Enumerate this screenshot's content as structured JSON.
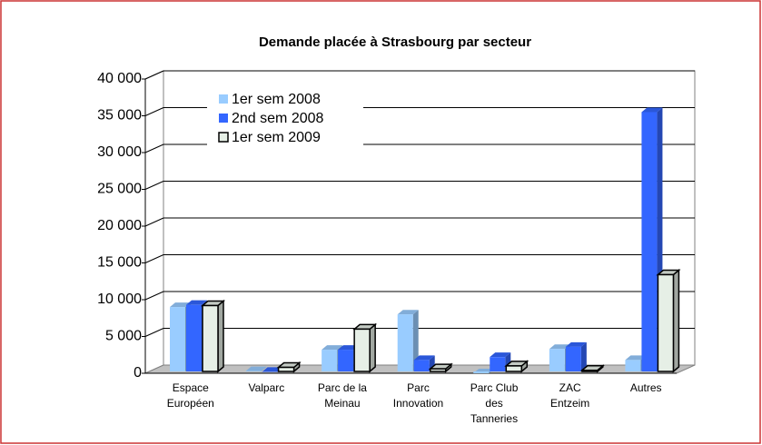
{
  "chart_data": {
    "type": "bar3d",
    "title": "Demande placée à Strasbourg par secteur",
    "categories": [
      "Espace\nEuropéen",
      "Valparc",
      "Parc de la\nMeinau",
      "Parc\nInnovation",
      "Parc Club\ndes\nTanneries",
      "ZAC\nEntzeim",
      "Autres"
    ],
    "series": [
      {
        "name": "1er sem 2008",
        "color": "#99ccff",
        "values": [
          9000,
          300,
          3200,
          8000,
          0,
          3300,
          1800
        ]
      },
      {
        "name": "2nd sem 2008",
        "color": "#3366ff",
        "values": [
          9300,
          200,
          3200,
          1800,
          2200,
          3600,
          35500
        ]
      },
      {
        "name": "1er sem 2009",
        "color": "#e6efe6",
        "values": [
          9200,
          800,
          6000,
          600,
          1000,
          400,
          13400
        ]
      }
    ],
    "ylim": [
      0,
      40000
    ],
    "yticks": [
      0,
      {
        "value": 5000,
        "label": "5 000"
      },
      {
        "value": 10000,
        "label": "10 000"
      },
      {
        "value": 15000,
        "label": "15 000"
      },
      {
        "value": 20000,
        "label": "20 000"
      },
      {
        "value": 25000,
        "label": "25 000"
      },
      {
        "value": 30000,
        "label": "30 000"
      },
      {
        "value": 35000,
        "label": "35 000"
      },
      {
        "value": 40000,
        "label": "40 000"
      }
    ],
    "grid": true,
    "legend": "upper left"
  }
}
